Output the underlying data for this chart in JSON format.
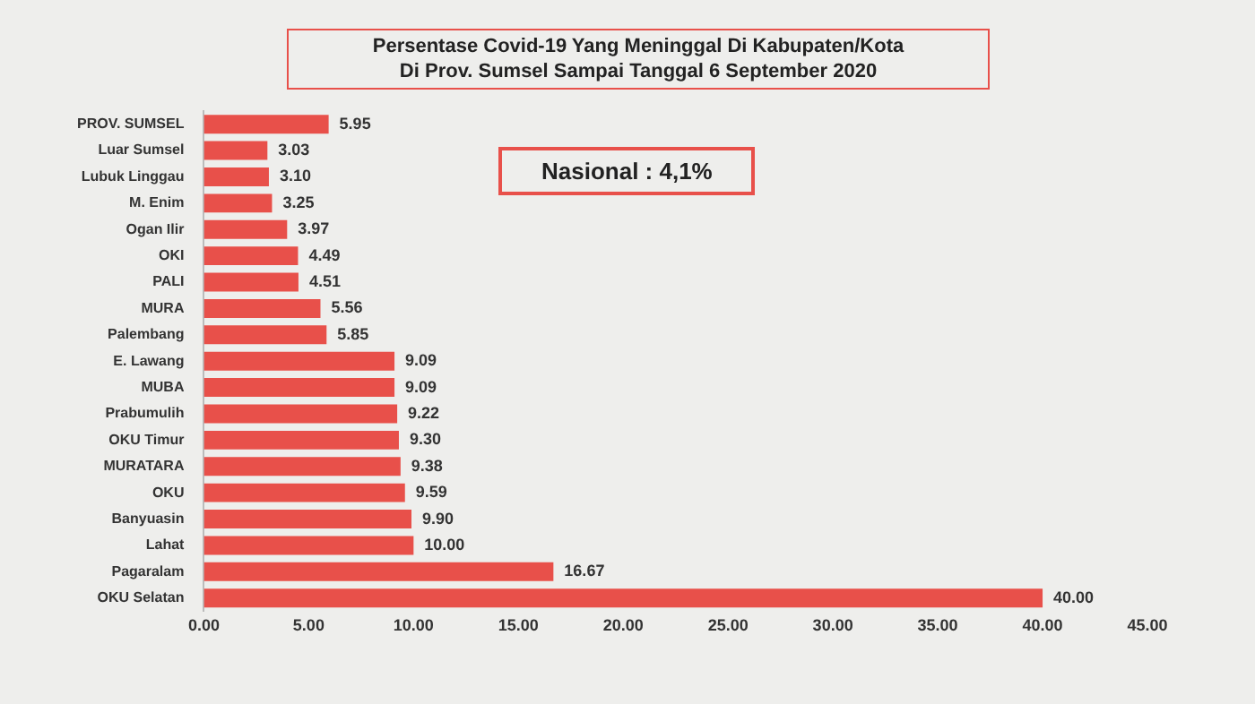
{
  "chart_data": {
    "type": "bar",
    "orientation": "horizontal",
    "title": "Persentase Covid-19 Yang Meninggal Di Kabupaten/Kota\nDi Prov. Sumsel Sampai Tanggal 6 September 2020",
    "categories": [
      "PROV. SUMSEL",
      "Luar Sumsel",
      "Lubuk Linggau",
      "M. Enim",
      "Ogan Ilir",
      "OKI",
      "PALI",
      "MURA",
      "Palembang",
      "E. Lawang",
      "MUBA",
      "Prabumulih",
      "OKU Timur",
      "MURATARA",
      "OKU",
      "Banyuasin",
      "Lahat",
      "Pagaralam",
      "OKU Selatan"
    ],
    "values": [
      5.95,
      3.03,
      3.1,
      3.25,
      3.97,
      4.49,
      4.51,
      5.56,
      5.85,
      9.09,
      9.09,
      9.22,
      9.3,
      9.38,
      9.59,
      9.9,
      10.0,
      16.67,
      40.0
    ],
    "value_labels": [
      "5.95",
      "3.03",
      "3.10",
      "3.25",
      "3.97",
      "4.49",
      "4.51",
      "5.56",
      "5.85",
      "9.09",
      "9.09",
      "9.22",
      "9.30",
      "9.38",
      "9.59",
      "9.90",
      "10.00",
      "16.67",
      "40.00"
    ],
    "color": "#e8504a",
    "xlim": [
      0,
      45
    ],
    "xticks": [
      {
        "value": 0,
        "label": "0.00"
      },
      {
        "value": 5,
        "label": "5.00"
      },
      {
        "value": 10,
        "label": "10.00"
      },
      {
        "value": 15,
        "label": "15.00"
      },
      {
        "value": 20,
        "label": "20.00"
      },
      {
        "value": 25,
        "label": "25.00"
      },
      {
        "value": 30,
        "label": "30.00"
      },
      {
        "value": 35,
        "label": "35.00"
      },
      {
        "value": 40,
        "label": "40.00"
      },
      {
        "value": 45,
        "label": "45.00"
      }
    ],
    "grid": false,
    "legend": false,
    "annotations": [
      "Nasional : 4,1%"
    ]
  }
}
